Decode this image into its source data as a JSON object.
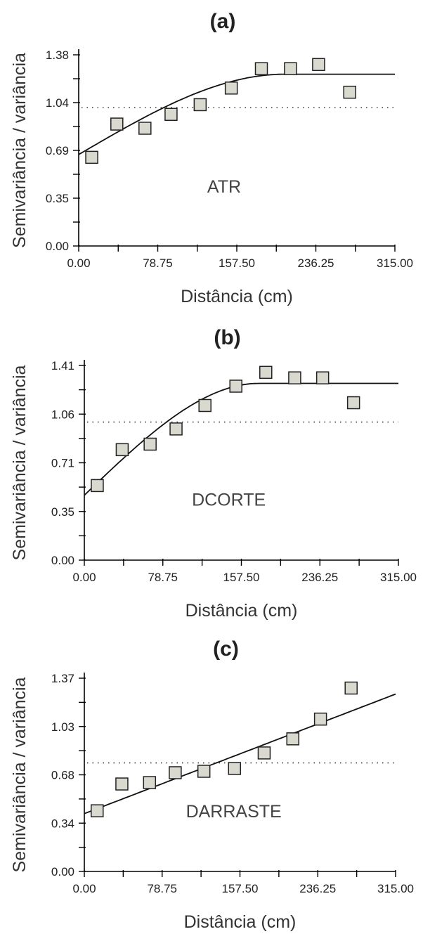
{
  "chart_data": [
    {
      "type": "scatter",
      "panel_label": "(a)",
      "annotation": "ATR",
      "xlabel": "Distância  (cm)",
      "ylabel": "Semivariância / variância",
      "xlim": [
        0,
        315
      ],
      "ylim": [
        0,
        1.38
      ],
      "xticks": [
        "0.00",
        "78.75",
        "157.50",
        "236.25",
        "315.00"
      ],
      "yticks": [
        "0.00",
        "0.35",
        "0.69",
        "1.04",
        "1.38"
      ],
      "sill": 1.0,
      "points": [
        [
          13,
          0.64
        ],
        [
          38,
          0.88
        ],
        [
          66,
          0.85
        ],
        [
          92,
          0.95
        ],
        [
          121,
          1.02
        ],
        [
          152,
          1.14
        ],
        [
          182,
          1.28
        ],
        [
          211,
          1.28
        ],
        [
          239,
          1.31
        ],
        [
          270,
          1.11
        ]
      ],
      "model": {
        "kind": "spherical",
        "nugget": 0.66,
        "sill": 1.24,
        "range": 205,
        "x_end": 315
      }
    },
    {
      "type": "scatter",
      "panel_label": "(b)",
      "annotation": "DCORTE",
      "xlabel": "Distância (cm)",
      "ylabel": "Semivariância / variância",
      "xlim": [
        0,
        315
      ],
      "ylim": [
        0,
        1.41
      ],
      "xticks": [
        "0.00",
        "78.75",
        "157.50",
        "236.25",
        "315.00"
      ],
      "yticks": [
        "0.00",
        "0.35",
        "0.71",
        "1.06",
        "1.41"
      ],
      "sill": 1.0,
      "points": [
        [
          13,
          0.54
        ],
        [
          38,
          0.8
        ],
        [
          66,
          0.84
        ],
        [
          92,
          0.95
        ],
        [
          121,
          1.12
        ],
        [
          152,
          1.26
        ],
        [
          182,
          1.36
        ],
        [
          211,
          1.32
        ],
        [
          239,
          1.32
        ],
        [
          270,
          1.14
        ]
      ],
      "model": {
        "kind": "spherical",
        "nugget": 0.47,
        "sill": 1.28,
        "range": 175,
        "x_end": 315
      }
    },
    {
      "type": "scatter",
      "panel_label": "(c)",
      "annotation": "DARRASTE",
      "xlabel": "Distância (cm)",
      "ylabel": "Semivariância / variância",
      "xlim": [
        0,
        315
      ],
      "ylim": [
        0,
        1.37
      ],
      "xticks": [
        "0.00",
        "78.75",
        "157.50",
        "236.25",
        "315.00"
      ],
      "yticks": [
        "0.00",
        "0.34",
        "0.68",
        "1.03",
        "1.37"
      ],
      "sill": 0.77,
      "points": [
        [
          13,
          0.43
        ],
        [
          38,
          0.62
        ],
        [
          66,
          0.63
        ],
        [
          92,
          0.7
        ],
        [
          121,
          0.71
        ],
        [
          152,
          0.73
        ],
        [
          182,
          0.84
        ],
        [
          211,
          0.94
        ],
        [
          239,
          1.08
        ],
        [
          270,
          1.3
        ]
      ],
      "model": {
        "kind": "linear",
        "intercept": 0.41,
        "slope": 0.00269,
        "x_end": 315
      }
    }
  ]
}
